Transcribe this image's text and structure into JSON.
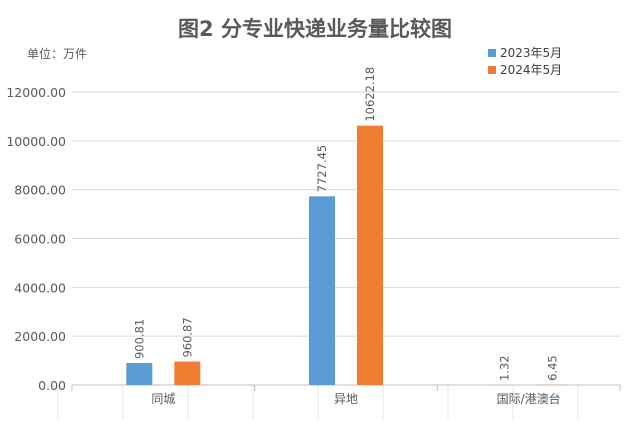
{
  "chart_data": {
    "type": "bar",
    "title": "图2 分专业快递业务量比较图",
    "unit_label": "单位：万件",
    "categories": [
      "同城",
      "异地",
      "国际/港澳台"
    ],
    "series": [
      {
        "name": "2023年5月",
        "color": "#5b9bd5",
        "values": [
          900.81,
          7727.45,
          1.32
        ]
      },
      {
        "name": "2024年5月",
        "color": "#ed7d31",
        "values": [
          960.87,
          10622.18,
          6.45
        ]
      }
    ],
    "data_labels": [
      [
        "900.81",
        "7727.45",
        "1.32"
      ],
      [
        "960.87",
        "10622.18",
        "6.45"
      ]
    ],
    "ylim": [
      0,
      12000
    ],
    "yticks": [
      "0.00",
      "2000.00",
      "4000.00",
      "6000.00",
      "8000.00",
      "10000.00",
      "12000.00"
    ],
    "grid": true,
    "legend_position": "top-right"
  }
}
